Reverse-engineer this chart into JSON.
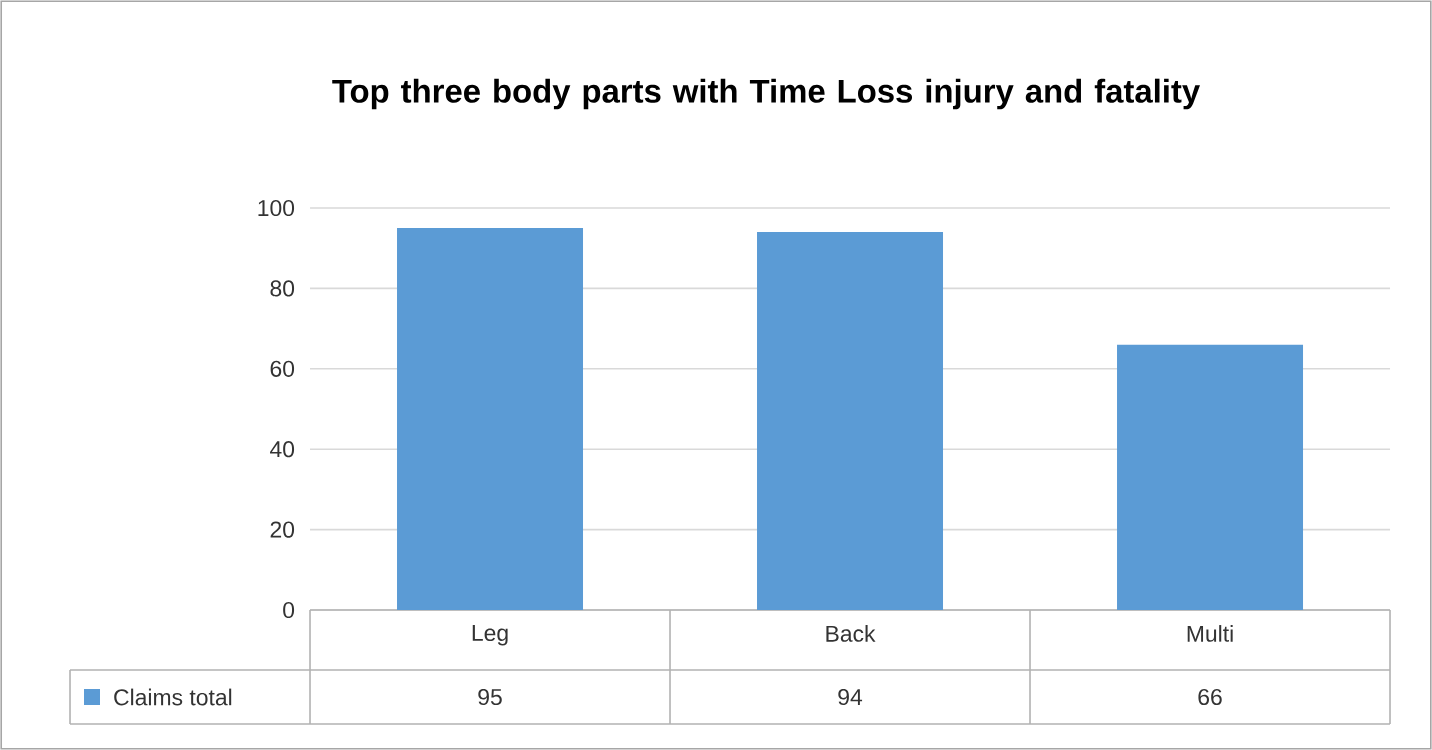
{
  "chart_data": {
    "type": "bar",
    "title": "Top three body parts with Time Loss injury and fatality",
    "categories": [
      "Leg",
      "Back",
      "Multi"
    ],
    "series": [
      {
        "name": "Claims total",
        "color": "#5b9bd5",
        "values": [
          95,
          94,
          66
        ]
      }
    ],
    "ylim": [
      0,
      100
    ],
    "yticks": [
      0,
      20,
      40,
      60,
      80,
      100
    ],
    "grid": "y",
    "data_labels": true,
    "legend": "bottom left"
  }
}
